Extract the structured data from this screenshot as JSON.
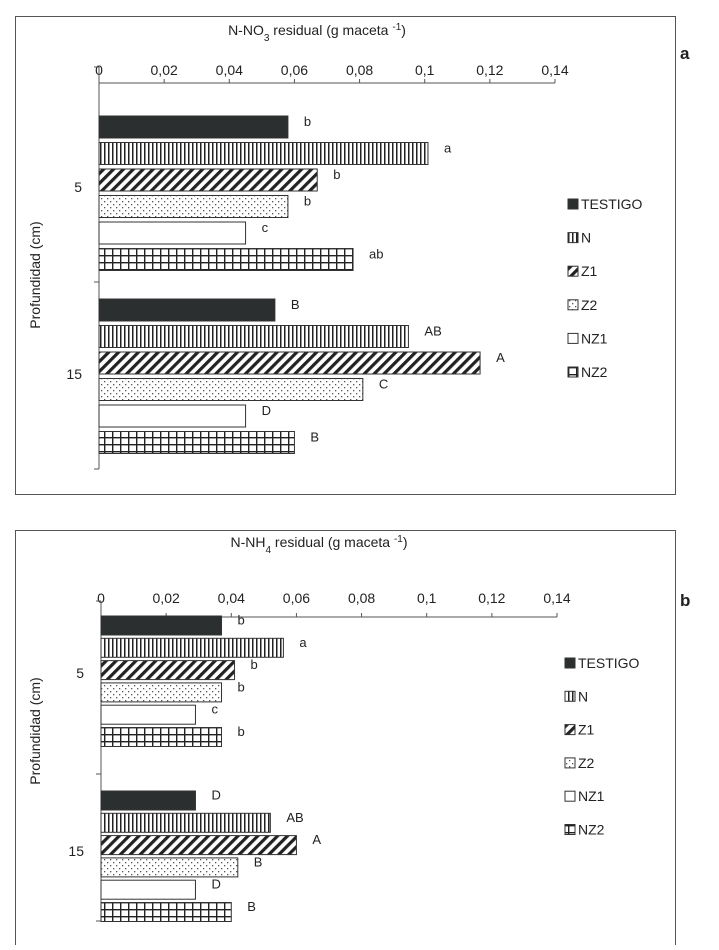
{
  "panel_letters": [
    "a",
    "b"
  ],
  "chart_data": [
    {
      "type": "bar",
      "orientation": "horizontal",
      "title": "N-NO₃ residual (g maceta⁻¹)",
      "title_parts": {
        "pre": "N-NO",
        "sub": "3",
        "mid": " residual  (g maceta ",
        "sup": "-1",
        "post": ")"
      },
      "xlabel": "N-NO₃ residual (g maceta⁻¹)",
      "ylabel": "Profundidad (cm)",
      "xlim": [
        0,
        0.14
      ],
      "x_ticks": [
        "0",
        "0,02",
        "0,04",
        "0,06",
        "0,08",
        "0,1",
        "0,12",
        "0,14"
      ],
      "categories": [
        "5",
        "15"
      ],
      "legend_position": "right",
      "grid": false,
      "series": [
        {
          "name": "TESTIGO",
          "values": [
            0.058,
            0.054
          ],
          "labels": [
            "b",
            "B"
          ]
        },
        {
          "name": "N",
          "values": [
            0.101,
            0.095
          ],
          "labels": [
            "a",
            "AB"
          ]
        },
        {
          "name": "Z1",
          "values": [
            0.067,
            0.117
          ],
          "labels": [
            "b",
            "A"
          ]
        },
        {
          "name": "Z2",
          "values": [
            0.058,
            0.081
          ],
          "labels": [
            "b",
            "C"
          ]
        },
        {
          "name": "NZ1",
          "values": [
            0.045,
            0.045
          ],
          "labels": [
            "c",
            "D"
          ]
        },
        {
          "name": "NZ2",
          "values": [
            0.078,
            0.06
          ],
          "labels": [
            "ab",
            "B"
          ]
        }
      ]
    },
    {
      "type": "bar",
      "orientation": "horizontal",
      "title": "N-NH₄ residual (g maceta⁻¹)",
      "title_parts": {
        "pre": "N-NH",
        "sub": "4",
        "mid": " residual (g maceta ",
        "sup": "-1",
        "post": ")"
      },
      "xlabel": "N-NH₄ residual (g maceta⁻¹)",
      "ylabel": "Profundidad (cm)",
      "xlim": [
        0,
        0.14
      ],
      "x_ticks": [
        "0",
        "0,02",
        "0,04",
        "0,06",
        "0,08",
        "0,1",
        "0,12",
        "0,14"
      ],
      "categories": [
        "5",
        "15"
      ],
      "legend_position": "right",
      "grid": false,
      "series": [
        {
          "name": "TESTIGO",
          "values": [
            0.037,
            0.029
          ],
          "labels": [
            "b",
            "D"
          ]
        },
        {
          "name": "N",
          "values": [
            0.056,
            0.052
          ],
          "labels": [
            "a",
            "AB"
          ]
        },
        {
          "name": "Z1",
          "values": [
            0.041,
            0.06
          ],
          "labels": [
            "b",
            "A"
          ]
        },
        {
          "name": "Z2",
          "values": [
            0.037,
            0.042
          ],
          "labels": [
            "b",
            "B"
          ]
        },
        {
          "name": "NZ1",
          "values": [
            0.029,
            0.029
          ],
          "labels": [
            "c",
            "D"
          ]
        },
        {
          "name": "NZ2",
          "values": [
            0.037,
            0.04
          ],
          "labels": [
            "b",
            "B"
          ]
        }
      ]
    }
  ]
}
